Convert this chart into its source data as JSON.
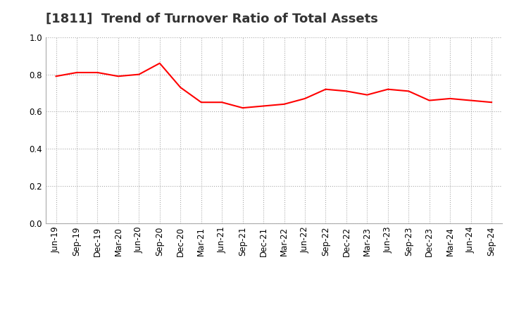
{
  "title": "[1811]  Trend of Turnover Ratio of Total Assets",
  "labels": [
    "Jun-19",
    "Sep-19",
    "Dec-19",
    "Mar-20",
    "Jun-20",
    "Sep-20",
    "Dec-20",
    "Mar-21",
    "Jun-21",
    "Sep-21",
    "Dec-21",
    "Mar-22",
    "Jun-22",
    "Sep-22",
    "Dec-22",
    "Mar-23",
    "Jun-23",
    "Sep-23",
    "Dec-23",
    "Mar-24",
    "Jun-24",
    "Sep-24"
  ],
  "values": [
    0.79,
    0.81,
    0.81,
    0.79,
    0.8,
    0.86,
    0.73,
    0.65,
    0.65,
    0.62,
    0.63,
    0.64,
    0.67,
    0.72,
    0.71,
    0.69,
    0.72,
    0.71,
    0.66,
    0.67,
    0.66,
    0.65
  ],
  "line_color": "#FF0000",
  "line_width": 1.5,
  "ylim": [
    0.0,
    1.0
  ],
  "yticks": [
    0.0,
    0.2,
    0.4,
    0.6,
    0.8,
    1.0
  ],
  "grid_color": "#aaaaaa",
  "bg_color": "#ffffff",
  "title_fontsize": 13,
  "tick_fontsize": 8.5
}
